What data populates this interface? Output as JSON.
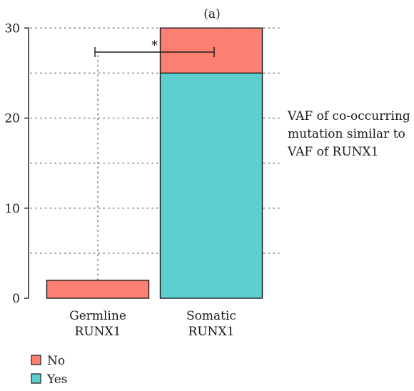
{
  "chart_data": {
    "type": "bar",
    "stacked": true,
    "panel_label": "(a)",
    "categories": [
      "Germline RUNX1",
      "Somatic RUNX1"
    ],
    "category_lines": [
      [
        "Germline",
        "RUNX1"
      ],
      [
        "Somatic",
        "RUNX1"
      ]
    ],
    "series": [
      {
        "name": "Yes",
        "values": [
          0,
          25
        ],
        "color": "#5ecfcf"
      },
      {
        "name": "No",
        "values": [
          2,
          5
        ],
        "color": "#fb8072"
      }
    ],
    "ylim": [
      0,
      32
    ],
    "yticks": [
      0,
      10,
      20,
      30
    ],
    "grid": "dotted",
    "legend_order": [
      "No",
      "Yes"
    ],
    "legend_position": "bottom-left",
    "significance": {
      "between": [
        0,
        1
      ],
      "label": "*"
    },
    "annotation": [
      "VAF of co-occurring",
      "mutation similar to",
      "VAF of RUNX1"
    ]
  }
}
